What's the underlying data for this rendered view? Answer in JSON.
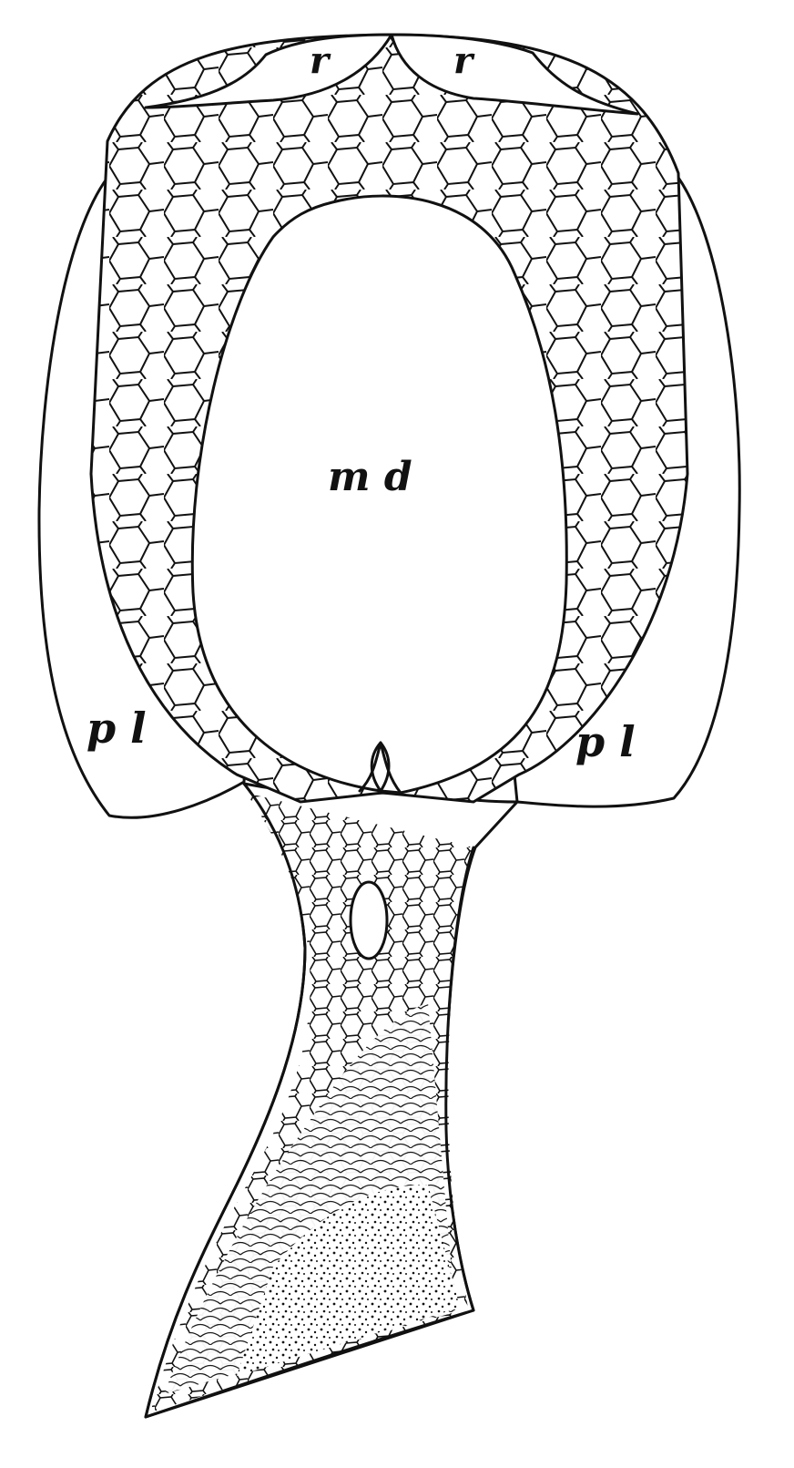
{
  "figure": {
    "labels": {
      "rostral_left": "r",
      "rostral_right": "r",
      "median_dorsal": "m d",
      "pectoral_left": "p l",
      "pectoral_right": "p l"
    },
    "colors": {
      "ink": "#111111",
      "paper": "#ffffff"
    }
  }
}
